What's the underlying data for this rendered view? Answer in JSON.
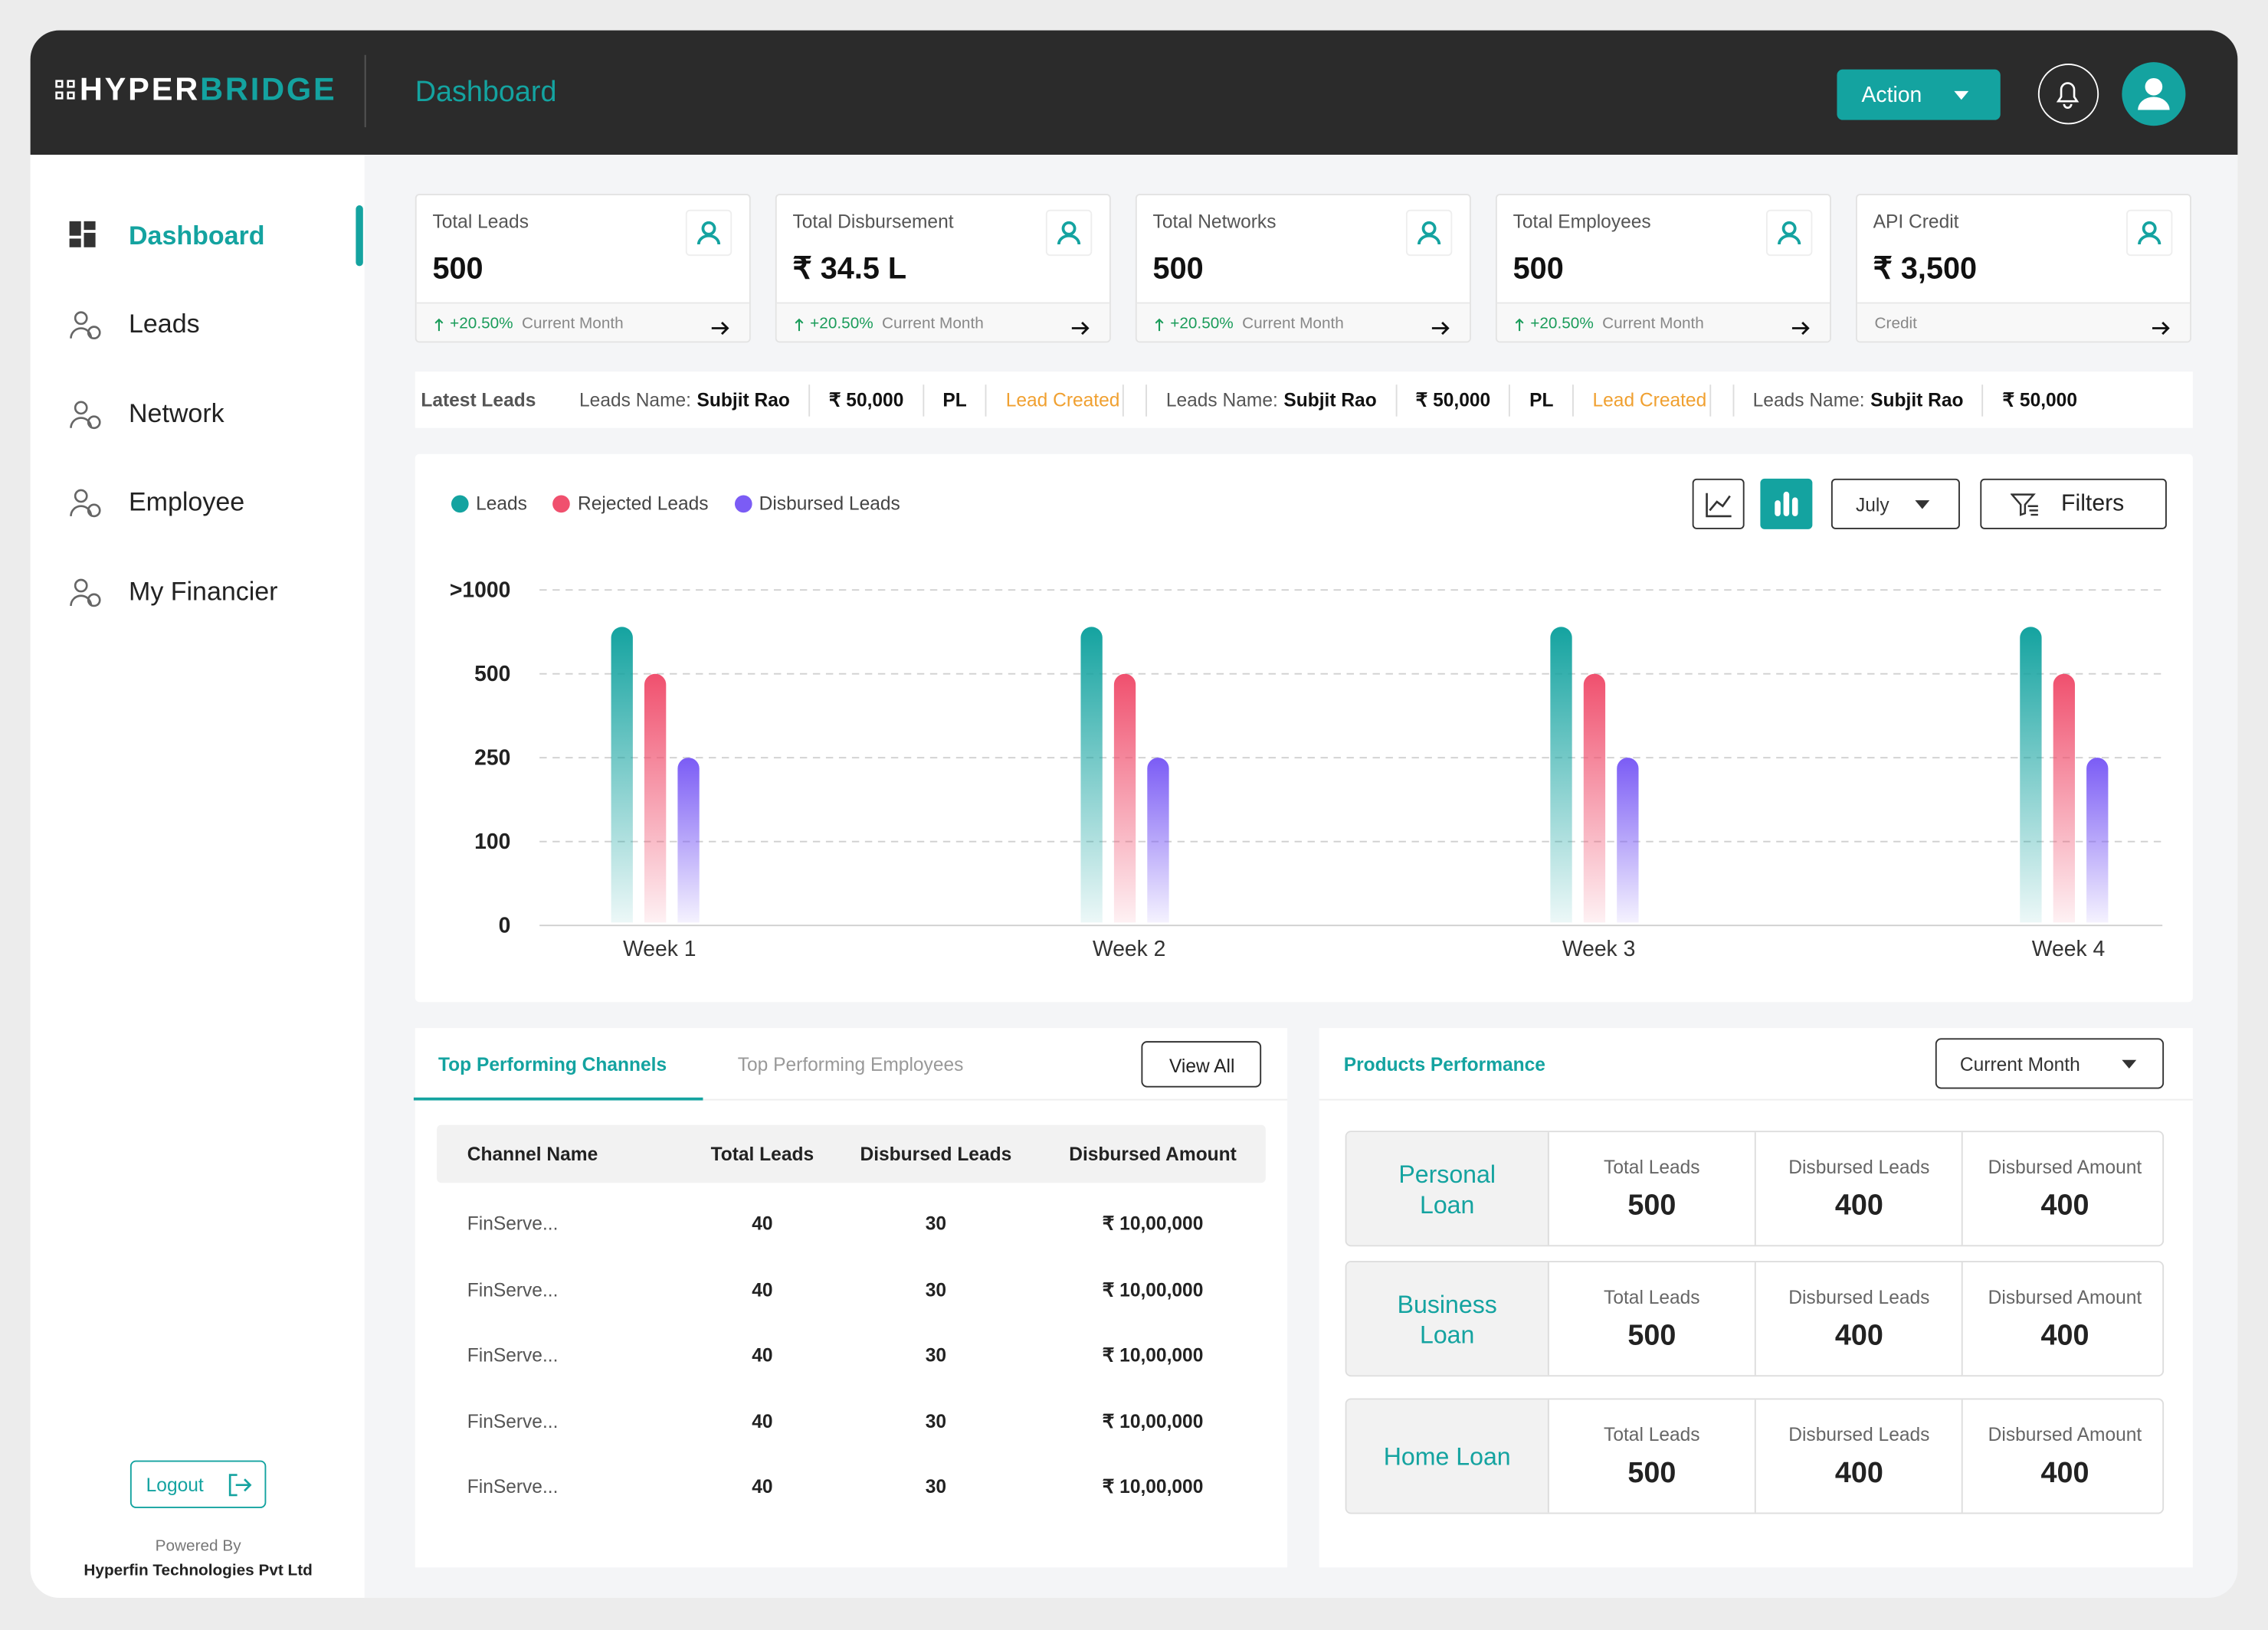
{
  "header": {
    "logo": [
      "HYPER",
      "BRIDGE"
    ],
    "title": "Dashboard",
    "action": "Action"
  },
  "sidebar": {
    "items": [
      "Dashboard",
      "Leads",
      "Network",
      "Employee",
      "My Financier"
    ],
    "logout": "Logout",
    "powered_by": "Powered By",
    "company": "Hyperfin Technologies Pvt Ltd"
  },
  "stats": [
    {
      "label": "Total Leads",
      "value": 500,
      "change": "+20.50%",
      "period": "Current Month"
    },
    {
      "label": "Total Disbursement",
      "value": "₹ 34.5 L",
      "change": "+20.50%",
      "period": "Current Month"
    },
    {
      "label": "Total Networks",
      "value": 500,
      "change": "+20.50%",
      "period": "Current Month"
    },
    {
      "label": "Total Employees",
      "value": 500,
      "change": "+20.50%",
      "period": "Current Month"
    },
    {
      "label": "API Credit",
      "value": "₹ 3,500",
      "footer": "Credit"
    }
  ],
  "latest_leads": {
    "title": "Latest Leads",
    "items": [
      {
        "name_label": "Leads Name:",
        "name": "Subjit Rao",
        "amount": "₹ 50,000",
        "product": "PL",
        "status": "Lead Created"
      },
      {
        "name_label": "Leads Name:",
        "name": "Subjit Rao",
        "amount": "₹ 50,000",
        "product": "PL",
        "status": "Lead Created"
      },
      {
        "name_label": "Leads Name:",
        "name": "Subjit Rao",
        "amount": "₹ 50,000"
      }
    ]
  },
  "chart_data": {
    "type": "bar",
    "categories": [
      "Week 1",
      "Week 2",
      "Week 3",
      "Week 4"
    ],
    "series": [
      {
        "name": "Leads",
        "color": "#14a3a0",
        "values": [
          780,
          780,
          780,
          780
        ]
      },
      {
        "name": "Rejected Leads",
        "color": "#f0506e",
        "values": [
          500,
          500,
          500,
          500
        ]
      },
      {
        "name": "Disbursed Leads",
        "color": "#7b5cf5",
        "values": [
          250,
          250,
          250,
          250
        ]
      }
    ],
    "ylim": [
      0,
      1000
    ],
    "yticks": [
      0,
      100,
      250,
      500,
      {
        "value": 1000,
        "label": ">1000"
      }
    ],
    "grid": true,
    "legend": "top-left"
  },
  "chart_controls": {
    "month": "July",
    "filters": "Filters"
  },
  "channels": {
    "tabs": [
      "Top Performing Channels",
      "Top Performing Employees"
    ],
    "view_all": "View All",
    "columns": [
      "Channel Name",
      "Total Leads",
      "Disbursed Leads",
      "Disbursed Amount"
    ],
    "rows": [
      [
        "FinServe...",
        40,
        30,
        "₹ 10,00,000"
      ],
      [
        "FinServe...",
        40,
        30,
        "₹ 10,00,000"
      ],
      [
        "FinServe...",
        40,
        30,
        "₹ 10,00,000"
      ],
      [
        "FinServe...",
        40,
        30,
        "₹ 10,00,000"
      ],
      [
        "FinServe...",
        40,
        30,
        "₹ 10,00,000"
      ]
    ]
  },
  "products": {
    "title": "Products Performance",
    "period": "Current Month",
    "columns": [
      "Total Leads",
      "Disbursed Leads",
      "Disbursed Amount"
    ],
    "rows": [
      {
        "name": "Personal Loan",
        "values": [
          500,
          400,
          400
        ]
      },
      {
        "name": "Business Loan",
        "values": [
          500,
          400,
          400
        ]
      },
      {
        "name": "Home Loan",
        "values": [
          500,
          400,
          400
        ]
      }
    ]
  }
}
